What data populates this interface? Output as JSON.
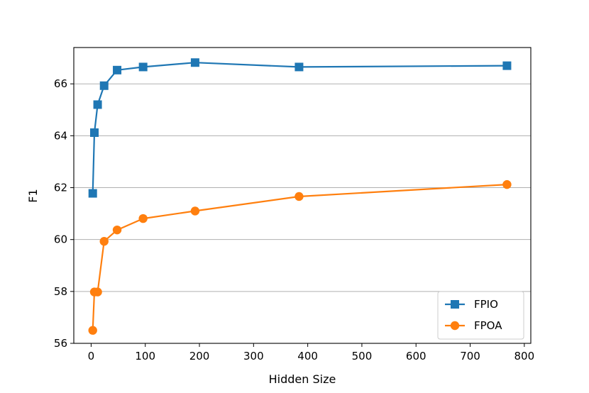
{
  "chart_data": {
    "type": "line",
    "title": "",
    "xlabel": "Hidden Size",
    "ylabel": "F1",
    "xlim": [
      -32,
      812
    ],
    "ylim": [
      56,
      67.4
    ],
    "x_ticks": [
      0,
      100,
      200,
      300,
      400,
      500,
      600,
      700,
      800
    ],
    "y_ticks": [
      56,
      58,
      60,
      62,
      64,
      66
    ],
    "grid": "horizontal",
    "legend_position": "lower-right",
    "series": [
      {
        "name": "FPIO",
        "color": "#1f77b4",
        "marker": "square",
        "x": [
          3,
          6,
          12,
          24,
          48,
          96,
          192,
          384,
          768
        ],
        "y": [
          61.78,
          64.12,
          65.2,
          65.93,
          66.53,
          66.65,
          66.82,
          66.65,
          66.7
        ]
      },
      {
        "name": "FPOA",
        "color": "#ff7f0e",
        "marker": "circle",
        "x": [
          3,
          6,
          12,
          24,
          48,
          96,
          192,
          384,
          768
        ],
        "y": [
          56.5,
          57.98,
          57.98,
          59.93,
          60.37,
          60.81,
          61.1,
          61.66,
          62.12
        ]
      }
    ]
  }
}
